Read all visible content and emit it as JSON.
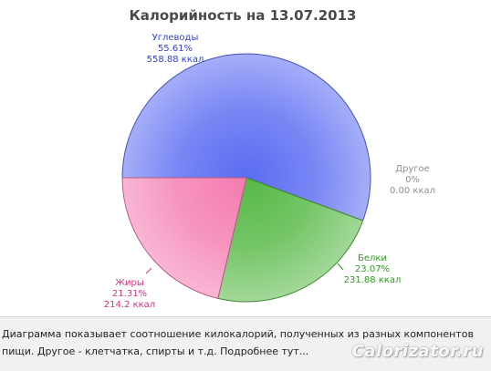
{
  "chart_data": {
    "type": "pie",
    "title": "Калорийность на 13.07.2013",
    "slices": [
      {
        "name": "Углеводы",
        "percent_label": "55.61%",
        "kcal_label": "558.88 ккал",
        "value": 558.88,
        "color": "#5a6cf2",
        "text_color": "#3344cc"
      },
      {
        "name": "Другое",
        "percent_label": "0%",
        "kcal_label": "0.00 ккал",
        "value": 0.0,
        "color": "#9a9a9a",
        "text_color": "#8f8f8f"
      },
      {
        "name": "Белки",
        "percent_label": "23.07%",
        "kcal_label": "231.88 ккал",
        "value": 231.88,
        "color": "#55b845",
        "text_color": "#2f9a22"
      },
      {
        "name": "Жиры",
        "percent_label": "21.31%",
        "kcal_label": "214.2 ккал",
        "value": 214.2,
        "color": "#f47bb0",
        "text_color": "#d2377e"
      }
    ],
    "legend": "none"
  },
  "caption": {
    "text": "Диаграмма показывает соотношение килокалорий, полученных из разных компонентов пищи. Другое - клетчатка, спирты и т.д. ",
    "link": "Подробнее тут..."
  },
  "watermark": "Calorizator.ru"
}
